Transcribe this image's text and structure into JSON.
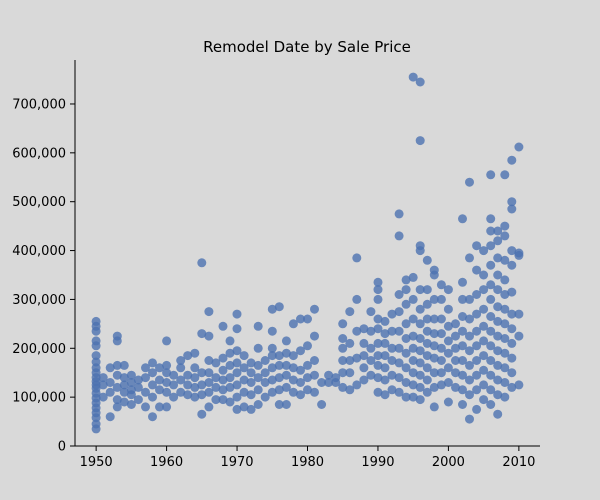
{
  "chart_data": {
    "type": "scatter",
    "title": "Remodel Date by Sale Price",
    "xlabel": "",
    "ylabel": "",
    "xlim": [
      1947,
      2013
    ],
    "ylim": [
      0,
      790000
    ],
    "xticks": [
      1950,
      1960,
      1970,
      1980,
      1990,
      2000,
      2010
    ],
    "xtick_labels": [
      "1950",
      "1960",
      "1970",
      "1980",
      "1990",
      "2000",
      "2010"
    ],
    "yticks": [
      0,
      100000,
      200000,
      300000,
      400000,
      500000,
      600000,
      700000
    ],
    "ytick_labels": [
      "0",
      "100,000",
      "200,000",
      "300,000",
      "400,000",
      "500,000",
      "600,000",
      "700,000"
    ],
    "grid": false,
    "marker_color": "#4c72b0",
    "points": [
      [
        1950,
        35000
      ],
      [
        1950,
        45000
      ],
      [
        1950,
        58000
      ],
      [
        1950,
        68000
      ],
      [
        1950,
        78000
      ],
      [
        1950,
        88000
      ],
      [
        1950,
        98000
      ],
      [
        1950,
        108000
      ],
      [
        1950,
        118000
      ],
      [
        1950,
        125000
      ],
      [
        1950,
        132000
      ],
      [
        1950,
        140000
      ],
      [
        1950,
        150000
      ],
      [
        1950,
        160000
      ],
      [
        1950,
        172000
      ],
      [
        1950,
        185000
      ],
      [
        1950,
        205000
      ],
      [
        1950,
        215000
      ],
      [
        1950,
        235000
      ],
      [
        1950,
        245000
      ],
      [
        1950,
        255000
      ],
      [
        1951,
        100000
      ],
      [
        1951,
        125000
      ],
      [
        1951,
        140000
      ],
      [
        1952,
        60000
      ],
      [
        1952,
        110000
      ],
      [
        1952,
        130000
      ],
      [
        1952,
        160000
      ],
      [
        1953,
        80000
      ],
      [
        1953,
        95000
      ],
      [
        1953,
        120000
      ],
      [
        1953,
        145000
      ],
      [
        1953,
        165000
      ],
      [
        1953,
        215000
      ],
      [
        1953,
        225000
      ],
      [
        1954,
        90000
      ],
      [
        1954,
        110000
      ],
      [
        1954,
        125000
      ],
      [
        1954,
        140000
      ],
      [
        1954,
        165000
      ],
      [
        1955,
        85000
      ],
      [
        1955,
        105000
      ],
      [
        1955,
        115000
      ],
      [
        1955,
        130000
      ],
      [
        1955,
        145000
      ],
      [
        1956,
        95000
      ],
      [
        1956,
        120000
      ],
      [
        1956,
        135000
      ],
      [
        1957,
        80000
      ],
      [
        1957,
        110000
      ],
      [
        1957,
        140000
      ],
      [
        1957,
        160000
      ],
      [
        1958,
        60000
      ],
      [
        1958,
        100000
      ],
      [
        1958,
        125000
      ],
      [
        1958,
        150000
      ],
      [
        1958,
        170000
      ],
      [
        1959,
        80000
      ],
      [
        1959,
        115000
      ],
      [
        1959,
        135000
      ],
      [
        1959,
        160000
      ],
      [
        1960,
        80000
      ],
      [
        1960,
        110000
      ],
      [
        1960,
        130000
      ],
      [
        1960,
        150000
      ],
      [
        1960,
        165000
      ],
      [
        1960,
        215000
      ],
      [
        1961,
        100000
      ],
      [
        1961,
        125000
      ],
      [
        1961,
        145000
      ],
      [
        1962,
        110000
      ],
      [
        1962,
        135000
      ],
      [
        1962,
        160000
      ],
      [
        1962,
        175000
      ],
      [
        1963,
        105000
      ],
      [
        1963,
        125000
      ],
      [
        1963,
        145000
      ],
      [
        1963,
        185000
      ],
      [
        1964,
        100000
      ],
      [
        1964,
        120000
      ],
      [
        1964,
        140000
      ],
      [
        1964,
        160000
      ],
      [
        1964,
        190000
      ],
      [
        1965,
        65000
      ],
      [
        1965,
        105000
      ],
      [
        1965,
        125000
      ],
      [
        1965,
        150000
      ],
      [
        1965,
        230000
      ],
      [
        1965,
        375000
      ],
      [
        1966,
        80000
      ],
      [
        1966,
        110000
      ],
      [
        1966,
        130000
      ],
      [
        1966,
        150000
      ],
      [
        1966,
        175000
      ],
      [
        1966,
        225000
      ],
      [
        1966,
        275000
      ],
      [
        1967,
        95000
      ],
      [
        1967,
        120000
      ],
      [
        1967,
        140000
      ],
      [
        1967,
        170000
      ],
      [
        1968,
        95000
      ],
      [
        1968,
        115000
      ],
      [
        1968,
        135000
      ],
      [
        1968,
        155000
      ],
      [
        1968,
        180000
      ],
      [
        1968,
        245000
      ],
      [
        1969,
        90000
      ],
      [
        1969,
        120000
      ],
      [
        1969,
        140000
      ],
      [
        1969,
        165000
      ],
      [
        1969,
        190000
      ],
      [
        1969,
        215000
      ],
      [
        1970,
        75000
      ],
      [
        1970,
        100000
      ],
      [
        1970,
        125000
      ],
      [
        1970,
        150000
      ],
      [
        1970,
        170000
      ],
      [
        1970,
        195000
      ],
      [
        1970,
        240000
      ],
      [
        1970,
        270000
      ],
      [
        1971,
        80000
      ],
      [
        1971,
        110000
      ],
      [
        1971,
        135000
      ],
      [
        1971,
        160000
      ],
      [
        1971,
        185000
      ],
      [
        1972,
        75000
      ],
      [
        1972,
        105000
      ],
      [
        1972,
        130000
      ],
      [
        1972,
        150000
      ],
      [
        1972,
        170000
      ],
      [
        1973,
        85000
      ],
      [
        1973,
        115000
      ],
      [
        1973,
        140000
      ],
      [
        1973,
        165000
      ],
      [
        1973,
        200000
      ],
      [
        1973,
        245000
      ],
      [
        1974,
        100000
      ],
      [
        1974,
        130000
      ],
      [
        1974,
        150000
      ],
      [
        1974,
        175000
      ],
      [
        1975,
        110000
      ],
      [
        1975,
        135000
      ],
      [
        1975,
        160000
      ],
      [
        1975,
        185000
      ],
      [
        1975,
        200000
      ],
      [
        1975,
        235000
      ],
      [
        1975,
        280000
      ],
      [
        1976,
        85000
      ],
      [
        1976,
        115000
      ],
      [
        1976,
        140000
      ],
      [
        1976,
        165000
      ],
      [
        1976,
        185000
      ],
      [
        1976,
        285000
      ],
      [
        1977,
        85000
      ],
      [
        1977,
        120000
      ],
      [
        1977,
        145000
      ],
      [
        1977,
        165000
      ],
      [
        1977,
        190000
      ],
      [
        1977,
        215000
      ],
      [
        1978,
        110000
      ],
      [
        1978,
        135000
      ],
      [
        1978,
        160000
      ],
      [
        1978,
        185000
      ],
      [
        1978,
        250000
      ],
      [
        1979,
        105000
      ],
      [
        1979,
        130000
      ],
      [
        1979,
        155000
      ],
      [
        1979,
        195000
      ],
      [
        1979,
        260000
      ],
      [
        1980,
        115000
      ],
      [
        1980,
        140000
      ],
      [
        1980,
        165000
      ],
      [
        1980,
        205000
      ],
      [
        1980,
        260000
      ],
      [
        1981,
        110000
      ],
      [
        1981,
        145000
      ],
      [
        1981,
        175000
      ],
      [
        1981,
        225000
      ],
      [
        1981,
        280000
      ],
      [
        1982,
        85000
      ],
      [
        1982,
        130000
      ],
      [
        1983,
        130000
      ],
      [
        1983,
        145000
      ],
      [
        1984,
        130000
      ],
      [
        1984,
        140000
      ],
      [
        1985,
        120000
      ],
      [
        1985,
        150000
      ],
      [
        1985,
        175000
      ],
      [
        1985,
        200000
      ],
      [
        1985,
        220000
      ],
      [
        1985,
        250000
      ],
      [
        1986,
        115000
      ],
      [
        1986,
        150000
      ],
      [
        1986,
        175000
      ],
      [
        1986,
        210000
      ],
      [
        1986,
        275000
      ],
      [
        1987,
        125000
      ],
      [
        1987,
        180000
      ],
      [
        1987,
        235000
      ],
      [
        1987,
        300000
      ],
      [
        1987,
        385000
      ],
      [
        1988,
        135000
      ],
      [
        1988,
        160000
      ],
      [
        1988,
        185000
      ],
      [
        1988,
        210000
      ],
      [
        1988,
        240000
      ],
      [
        1989,
        145000
      ],
      [
        1989,
        175000
      ],
      [
        1989,
        200000
      ],
      [
        1989,
        235000
      ],
      [
        1989,
        275000
      ],
      [
        1990,
        110000
      ],
      [
        1990,
        140000
      ],
      [
        1990,
        165000
      ],
      [
        1990,
        185000
      ],
      [
        1990,
        210000
      ],
      [
        1990,
        240000
      ],
      [
        1990,
        260000
      ],
      [
        1990,
        300000
      ],
      [
        1990,
        320000
      ],
      [
        1990,
        335000
      ],
      [
        1991,
        105000
      ],
      [
        1991,
        135000
      ],
      [
        1991,
        160000
      ],
      [
        1991,
        185000
      ],
      [
        1991,
        210000
      ],
      [
        1991,
        230000
      ],
      [
        1991,
        255000
      ],
      [
        1992,
        115000
      ],
      [
        1992,
        145000
      ],
      [
        1992,
        175000
      ],
      [
        1992,
        200000
      ],
      [
        1992,
        235000
      ],
      [
        1992,
        270000
      ],
      [
        1993,
        110000
      ],
      [
        1993,
        140000
      ],
      [
        1993,
        170000
      ],
      [
        1993,
        200000
      ],
      [
        1993,
        235000
      ],
      [
        1993,
        275000
      ],
      [
        1993,
        310000
      ],
      [
        1993,
        430000
      ],
      [
        1993,
        475000
      ],
      [
        1994,
        100000
      ],
      [
        1994,
        130000
      ],
      [
        1994,
        160000
      ],
      [
        1994,
        190000
      ],
      [
        1994,
        220000
      ],
      [
        1994,
        250000
      ],
      [
        1994,
        290000
      ],
      [
        1994,
        320000
      ],
      [
        1994,
        340000
      ],
      [
        1995,
        100000
      ],
      [
        1995,
        125000
      ],
      [
        1995,
        150000
      ],
      [
        1995,
        175000
      ],
      [
        1995,
        200000
      ],
      [
        1995,
        225000
      ],
      [
        1995,
        260000
      ],
      [
        1995,
        300000
      ],
      [
        1995,
        345000
      ],
      [
        1995,
        755000
      ],
      [
        1996,
        95000
      ],
      [
        1996,
        120000
      ],
      [
        1996,
        145000
      ],
      [
        1996,
        170000
      ],
      [
        1996,
        195000
      ],
      [
        1996,
        220000
      ],
      [
        1996,
        250000
      ],
      [
        1996,
        280000
      ],
      [
        1996,
        320000
      ],
      [
        1996,
        400000
      ],
      [
        1996,
        410000
      ],
      [
        1996,
        625000
      ],
      [
        1996,
        745000
      ],
      [
        1997,
        110000
      ],
      [
        1997,
        135000
      ],
      [
        1997,
        160000
      ],
      [
        1997,
        185000
      ],
      [
        1997,
        210000
      ],
      [
        1997,
        235000
      ],
      [
        1997,
        260000
      ],
      [
        1997,
        290000
      ],
      [
        1997,
        320000
      ],
      [
        1997,
        380000
      ],
      [
        1998,
        80000
      ],
      [
        1998,
        120000
      ],
      [
        1998,
        150000
      ],
      [
        1998,
        180000
      ],
      [
        1998,
        205000
      ],
      [
        1998,
        230000
      ],
      [
        1998,
        260000
      ],
      [
        1998,
        300000
      ],
      [
        1998,
        350000
      ],
      [
        1998,
        360000
      ],
      [
        1999,
        125000
      ],
      [
        1999,
        150000
      ],
      [
        1999,
        175000
      ],
      [
        1999,
        200000
      ],
      [
        1999,
        230000
      ],
      [
        1999,
        260000
      ],
      [
        1999,
        300000
      ],
      [
        1999,
        330000
      ],
      [
        2000,
        90000
      ],
      [
        2000,
        130000
      ],
      [
        2000,
        160000
      ],
      [
        2000,
        190000
      ],
      [
        2000,
        215000
      ],
      [
        2000,
        245000
      ],
      [
        2000,
        280000
      ],
      [
        2000,
        320000
      ],
      [
        2001,
        120000
      ],
      [
        2001,
        150000
      ],
      [
        2001,
        175000
      ],
      [
        2001,
        200000
      ],
      [
        2001,
        225000
      ],
      [
        2001,
        250000
      ],
      [
        2002,
        85000
      ],
      [
        2002,
        115000
      ],
      [
        2002,
        145000
      ],
      [
        2002,
        175000
      ],
      [
        2002,
        205000
      ],
      [
        2002,
        235000
      ],
      [
        2002,
        265000
      ],
      [
        2002,
        300000
      ],
      [
        2002,
        335000
      ],
      [
        2002,
        465000
      ],
      [
        2003,
        55000
      ],
      [
        2003,
        105000
      ],
      [
        2003,
        135000
      ],
      [
        2003,
        165000
      ],
      [
        2003,
        195000
      ],
      [
        2003,
        225000
      ],
      [
        2003,
        260000
      ],
      [
        2003,
        300000
      ],
      [
        2003,
        385000
      ],
      [
        2003,
        540000
      ],
      [
        2004,
        75000
      ],
      [
        2004,
        115000
      ],
      [
        2004,
        145000
      ],
      [
        2004,
        175000
      ],
      [
        2004,
        205000
      ],
      [
        2004,
        235000
      ],
      [
        2004,
        270000
      ],
      [
        2004,
        310000
      ],
      [
        2004,
        360000
      ],
      [
        2004,
        410000
      ],
      [
        2005,
        95000
      ],
      [
        2005,
        125000
      ],
      [
        2005,
        155000
      ],
      [
        2005,
        185000
      ],
      [
        2005,
        215000
      ],
      [
        2005,
        245000
      ],
      [
        2005,
        280000
      ],
      [
        2005,
        320000
      ],
      [
        2005,
        350000
      ],
      [
        2005,
        400000
      ],
      [
        2006,
        85000
      ],
      [
        2006,
        115000
      ],
      [
        2006,
        145000
      ],
      [
        2006,
        175000
      ],
      [
        2006,
        205000
      ],
      [
        2006,
        235000
      ],
      [
        2006,
        265000
      ],
      [
        2006,
        300000
      ],
      [
        2006,
        330000
      ],
      [
        2006,
        370000
      ],
      [
        2006,
        410000
      ],
      [
        2006,
        440000
      ],
      [
        2006,
        465000
      ],
      [
        2006,
        555000
      ],
      [
        2007,
        65000
      ],
      [
        2007,
        105000
      ],
      [
        2007,
        135000
      ],
      [
        2007,
        165000
      ],
      [
        2007,
        195000
      ],
      [
        2007,
        225000
      ],
      [
        2007,
        255000
      ],
      [
        2007,
        285000
      ],
      [
        2007,
        320000
      ],
      [
        2007,
        350000
      ],
      [
        2007,
        385000
      ],
      [
        2007,
        420000
      ],
      [
        2007,
        440000
      ],
      [
        2008,
        100000
      ],
      [
        2008,
        130000
      ],
      [
        2008,
        160000
      ],
      [
        2008,
        190000
      ],
      [
        2008,
        220000
      ],
      [
        2008,
        250000
      ],
      [
        2008,
        280000
      ],
      [
        2008,
        310000
      ],
      [
        2008,
        340000
      ],
      [
        2008,
        380000
      ],
      [
        2008,
        430000
      ],
      [
        2008,
        450000
      ],
      [
        2008,
        555000
      ],
      [
        2009,
        120000
      ],
      [
        2009,
        150000
      ],
      [
        2009,
        180000
      ],
      [
        2009,
        210000
      ],
      [
        2009,
        240000
      ],
      [
        2009,
        270000
      ],
      [
        2009,
        315000
      ],
      [
        2009,
        370000
      ],
      [
        2009,
        400000
      ],
      [
        2009,
        485000
      ],
      [
        2009,
        500000
      ],
      [
        2009,
        585000
      ],
      [
        2010,
        125000
      ],
      [
        2010,
        225000
      ],
      [
        2010,
        270000
      ],
      [
        2010,
        390000
      ],
      [
        2010,
        395000
      ],
      [
        2010,
        612000
      ]
    ]
  }
}
